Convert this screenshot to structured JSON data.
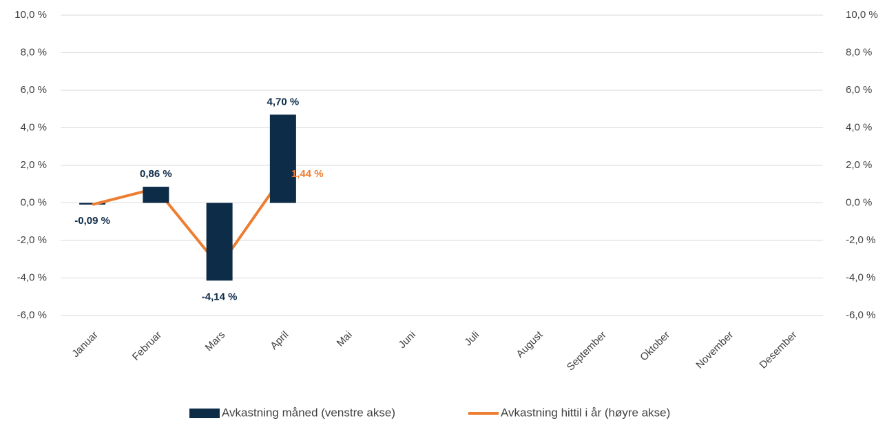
{
  "chart_data": {
    "type": "bar",
    "categories": [
      "Januar",
      "Februar",
      "Mars",
      "April",
      "Mai",
      "Juni",
      "Juli",
      "August",
      "September",
      "Oktober",
      "November",
      "Desember"
    ],
    "series": [
      {
        "name": "Avkastning måned (venstre akse)",
        "type": "bar",
        "color": "#0d2c48",
        "values": [
          -0.09,
          0.86,
          -4.14,
          4.7,
          null,
          null,
          null,
          null,
          null,
          null,
          null,
          null
        ],
        "value_labels": [
          "-0,09 %",
          "0,86 %",
          "-4,14 %",
          "4,70 %",
          null,
          null,
          null,
          null,
          null,
          null,
          null,
          null
        ]
      },
      {
        "name": "Avkastning hittil i år (høyre akse)",
        "type": "line",
        "axis": "y2",
        "color": "#ed7d31",
        "values": [
          -0.09,
          0.77,
          -3.4,
          1.44,
          null,
          null,
          null,
          null,
          null,
          null,
          null,
          null
        ],
        "value_labels": [
          null,
          null,
          null,
          "1,44 %",
          null,
          null,
          null,
          null,
          null,
          null,
          null,
          null
        ]
      }
    ],
    "ylim": [
      -6,
      10
    ],
    "yticks": [
      {
        "value": -6,
        "label": "-6,0 %"
      },
      {
        "value": -4,
        "label": "-4,0 %"
      },
      {
        "value": -2,
        "label": "-2,0 %"
      },
      {
        "value": 0,
        "label": "0,0 %"
      },
      {
        "value": 2,
        "label": "2,0 %"
      },
      {
        "value": 4,
        "label": "4,0 %"
      },
      {
        "value": 6,
        "label": "6,0 %"
      },
      {
        "value": 8,
        "label": "8,0 %"
      },
      {
        "value": 10,
        "label": "10,0 %"
      }
    ],
    "y2lim": [
      -6,
      10
    ],
    "y2ticks": [
      {
        "value": -6,
        "label": "-6,0 %"
      },
      {
        "value": -4,
        "label": "-4,0 %"
      },
      {
        "value": -2,
        "label": "-2,0 %"
      },
      {
        "value": 0,
        "label": "0,0 %"
      },
      {
        "value": 2,
        "label": "2,0 %"
      },
      {
        "value": 4,
        "label": "4,0 %"
      },
      {
        "value": 6,
        "label": "6,0 %"
      },
      {
        "value": 8,
        "label": "8,0 %"
      },
      {
        "value": 10,
        "label": "10,0 %"
      }
    ],
    "grid": true,
    "legend": "bottom"
  }
}
